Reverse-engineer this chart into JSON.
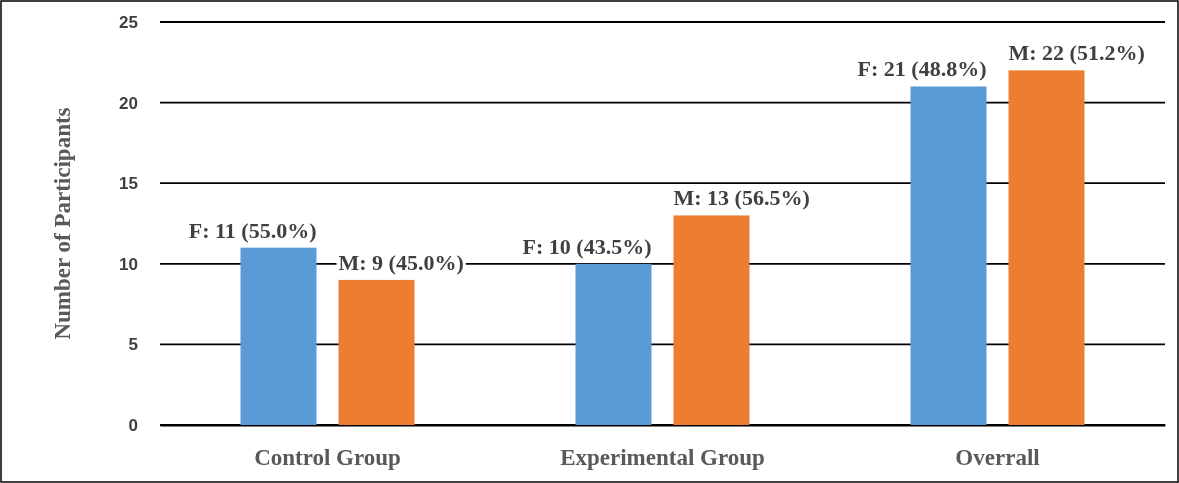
{
  "chart_data": {
    "type": "bar",
    "ylabel": "Number of Participants",
    "categories": [
      "Control Group",
      "Experimental Group",
      "Overrall"
    ],
    "series": [
      {
        "color": "#5b9bd5",
        "values": [
          11,
          10,
          21
        ],
        "value_labels": [
          "F: 11 (55.0%)",
          "F: 10 (43.5%)",
          "F: 21 (48.8%)"
        ]
      },
      {
        "color": "#ed7d31",
        "values": [
          9,
          13,
          22
        ],
        "value_labels": [
          "M: 9 (45.0%)",
          "M: 13 (56.5%)",
          "M: 22 (51.2%)"
        ]
      }
    ],
    "ylim": [
      0,
      25
    ],
    "yticks": [
      0,
      5,
      10,
      15,
      20,
      25
    ],
    "grid": "y"
  }
}
